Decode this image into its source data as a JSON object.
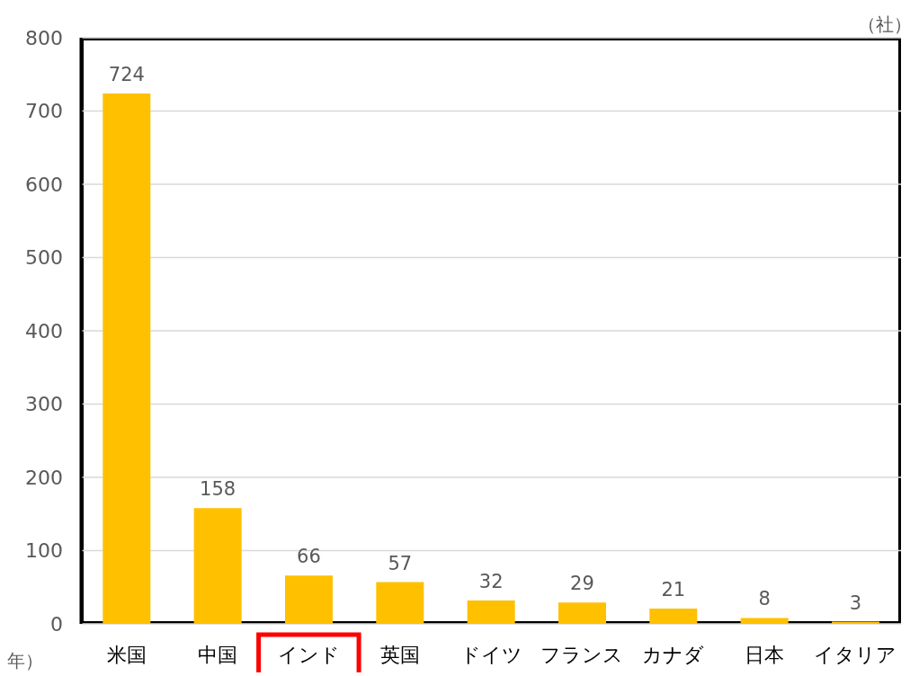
{
  "chart_data": {
    "type": "bar",
    "ylabel": "（社）",
    "categories": [
      "米国",
      "中国",
      "インド",
      "英国",
      "ドイツ",
      "フランス",
      "カナダ",
      "日本",
      "イタリア"
    ],
    "values": [
      724,
      158,
      66,
      57,
      32,
      29,
      21,
      8,
      3
    ],
    "color": "#ffc000",
    "ylim": [
      0,
      800
    ],
    "yticks": [
      0,
      100,
      200,
      300,
      400,
      500,
      600,
      700,
      800
    ],
    "grid": "y",
    "data_labels": true,
    "annotations": [
      "年）"
    ]
  }
}
